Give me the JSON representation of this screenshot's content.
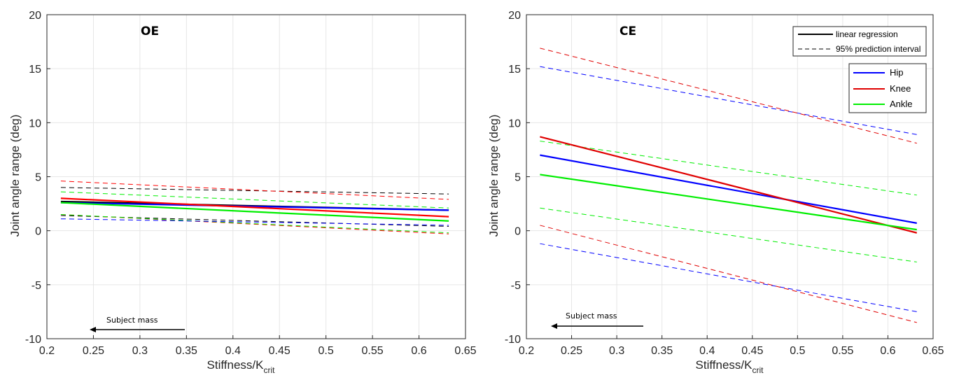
{
  "chart_data": [
    {
      "type": "line",
      "title": "OE",
      "xlabel": "Stiffness/K",
      "xlabel_sub": "crit",
      "ylabel": "Joint angle range (deg)",
      "xlim": [
        0.2,
        0.65
      ],
      "ylim": [
        -10,
        20
      ],
      "xticks": [
        "0.2",
        "0.25",
        "0.3",
        "0.35",
        "0.4",
        "0.45",
        "0.5",
        "0.55",
        "0.6",
        "0.65"
      ],
      "yticks": [
        "-10",
        "-5",
        "0",
        "5",
        "10",
        "15",
        "20"
      ],
      "grid": true,
      "annotation": "Subject mass",
      "x_range": [
        0.215,
        0.632
      ],
      "series": [
        {
          "kind": "regression",
          "color": "#000000",
          "y": [
            2.7,
            1.9
          ]
        },
        {
          "kind": "regression",
          "color": "#0000ff",
          "y": [
            2.6,
            1.9
          ]
        },
        {
          "kind": "regression",
          "color": "#ff0000",
          "y": [
            3.0,
            1.3
          ]
        },
        {
          "kind": "regression",
          "color": "#00ee00",
          "y": [
            2.6,
            0.9
          ]
        },
        {
          "kind": "interval",
          "color": "#000000",
          "y": [
            4.0,
            3.4
          ]
        },
        {
          "kind": "interval",
          "color": "#000000",
          "y": [
            1.4,
            0.4
          ]
        },
        {
          "kind": "interval",
          "color": "#ff0000",
          "y": [
            4.6,
            2.9
          ]
        },
        {
          "kind": "interval",
          "color": "#ff0000",
          "y": [
            1.5,
            -0.3
          ]
        },
        {
          "kind": "interval",
          "color": "#00ee00",
          "y": [
            3.6,
            2.1
          ]
        },
        {
          "kind": "interval",
          "color": "#00ee00",
          "y": [
            1.5,
            -0.2
          ]
        },
        {
          "kind": "interval",
          "color": "#0000ff",
          "y": [
            1.1,
            0.5
          ]
        }
      ]
    },
    {
      "type": "line",
      "title": "CE",
      "xlabel": "Stiffness/K",
      "xlabel_sub": "crit",
      "ylabel": "Joint angle range (deg)",
      "xlim": [
        0.2,
        0.65
      ],
      "ylim": [
        -10,
        20
      ],
      "xticks": [
        "0.2",
        "0.25",
        "0.3",
        "0.35",
        "0.4",
        "0.45",
        "0.5",
        "0.55",
        "0.6",
        "0.65"
      ],
      "yticks": [
        "-10",
        "-5",
        "0",
        "5",
        "10",
        "15",
        "20"
      ],
      "grid": true,
      "annotation": "Subject mass",
      "x_range": [
        0.215,
        0.632
      ],
      "legend_style": {
        "position": "top-right",
        "items": [
          "linear regression",
          "95% prediction interval"
        ]
      },
      "legend_joints": {
        "position": "right",
        "items": [
          {
            "name": "Hip",
            "color": "#0000ff"
          },
          {
            "name": "Knee",
            "color": "#e00000"
          },
          {
            "name": "Ankle",
            "color": "#00ee00"
          }
        ]
      },
      "series": [
        {
          "kind": "regression",
          "name": "Hip",
          "color": "#0000ff",
          "y": [
            7.0,
            0.7
          ]
        },
        {
          "kind": "regression",
          "name": "Knee",
          "color": "#e00000",
          "y": [
            8.7,
            -0.2
          ]
        },
        {
          "kind": "regression",
          "name": "Ankle",
          "color": "#00ee00",
          "y": [
            5.2,
            0.1
          ]
        },
        {
          "kind": "interval",
          "color": "#0000ff",
          "y": [
            15.2,
            8.9
          ]
        },
        {
          "kind": "interval",
          "color": "#0000ff",
          "y": [
            -1.2,
            -7.5
          ]
        },
        {
          "kind": "interval",
          "color": "#e00000",
          "y": [
            16.9,
            8.1
          ]
        },
        {
          "kind": "interval",
          "color": "#e00000",
          "y": [
            0.5,
            -8.5
          ]
        },
        {
          "kind": "interval",
          "color": "#00ee00",
          "y": [
            8.3,
            3.3
          ]
        },
        {
          "kind": "interval",
          "color": "#00ee00",
          "y": [
            2.1,
            -2.9
          ]
        }
      ]
    }
  ]
}
